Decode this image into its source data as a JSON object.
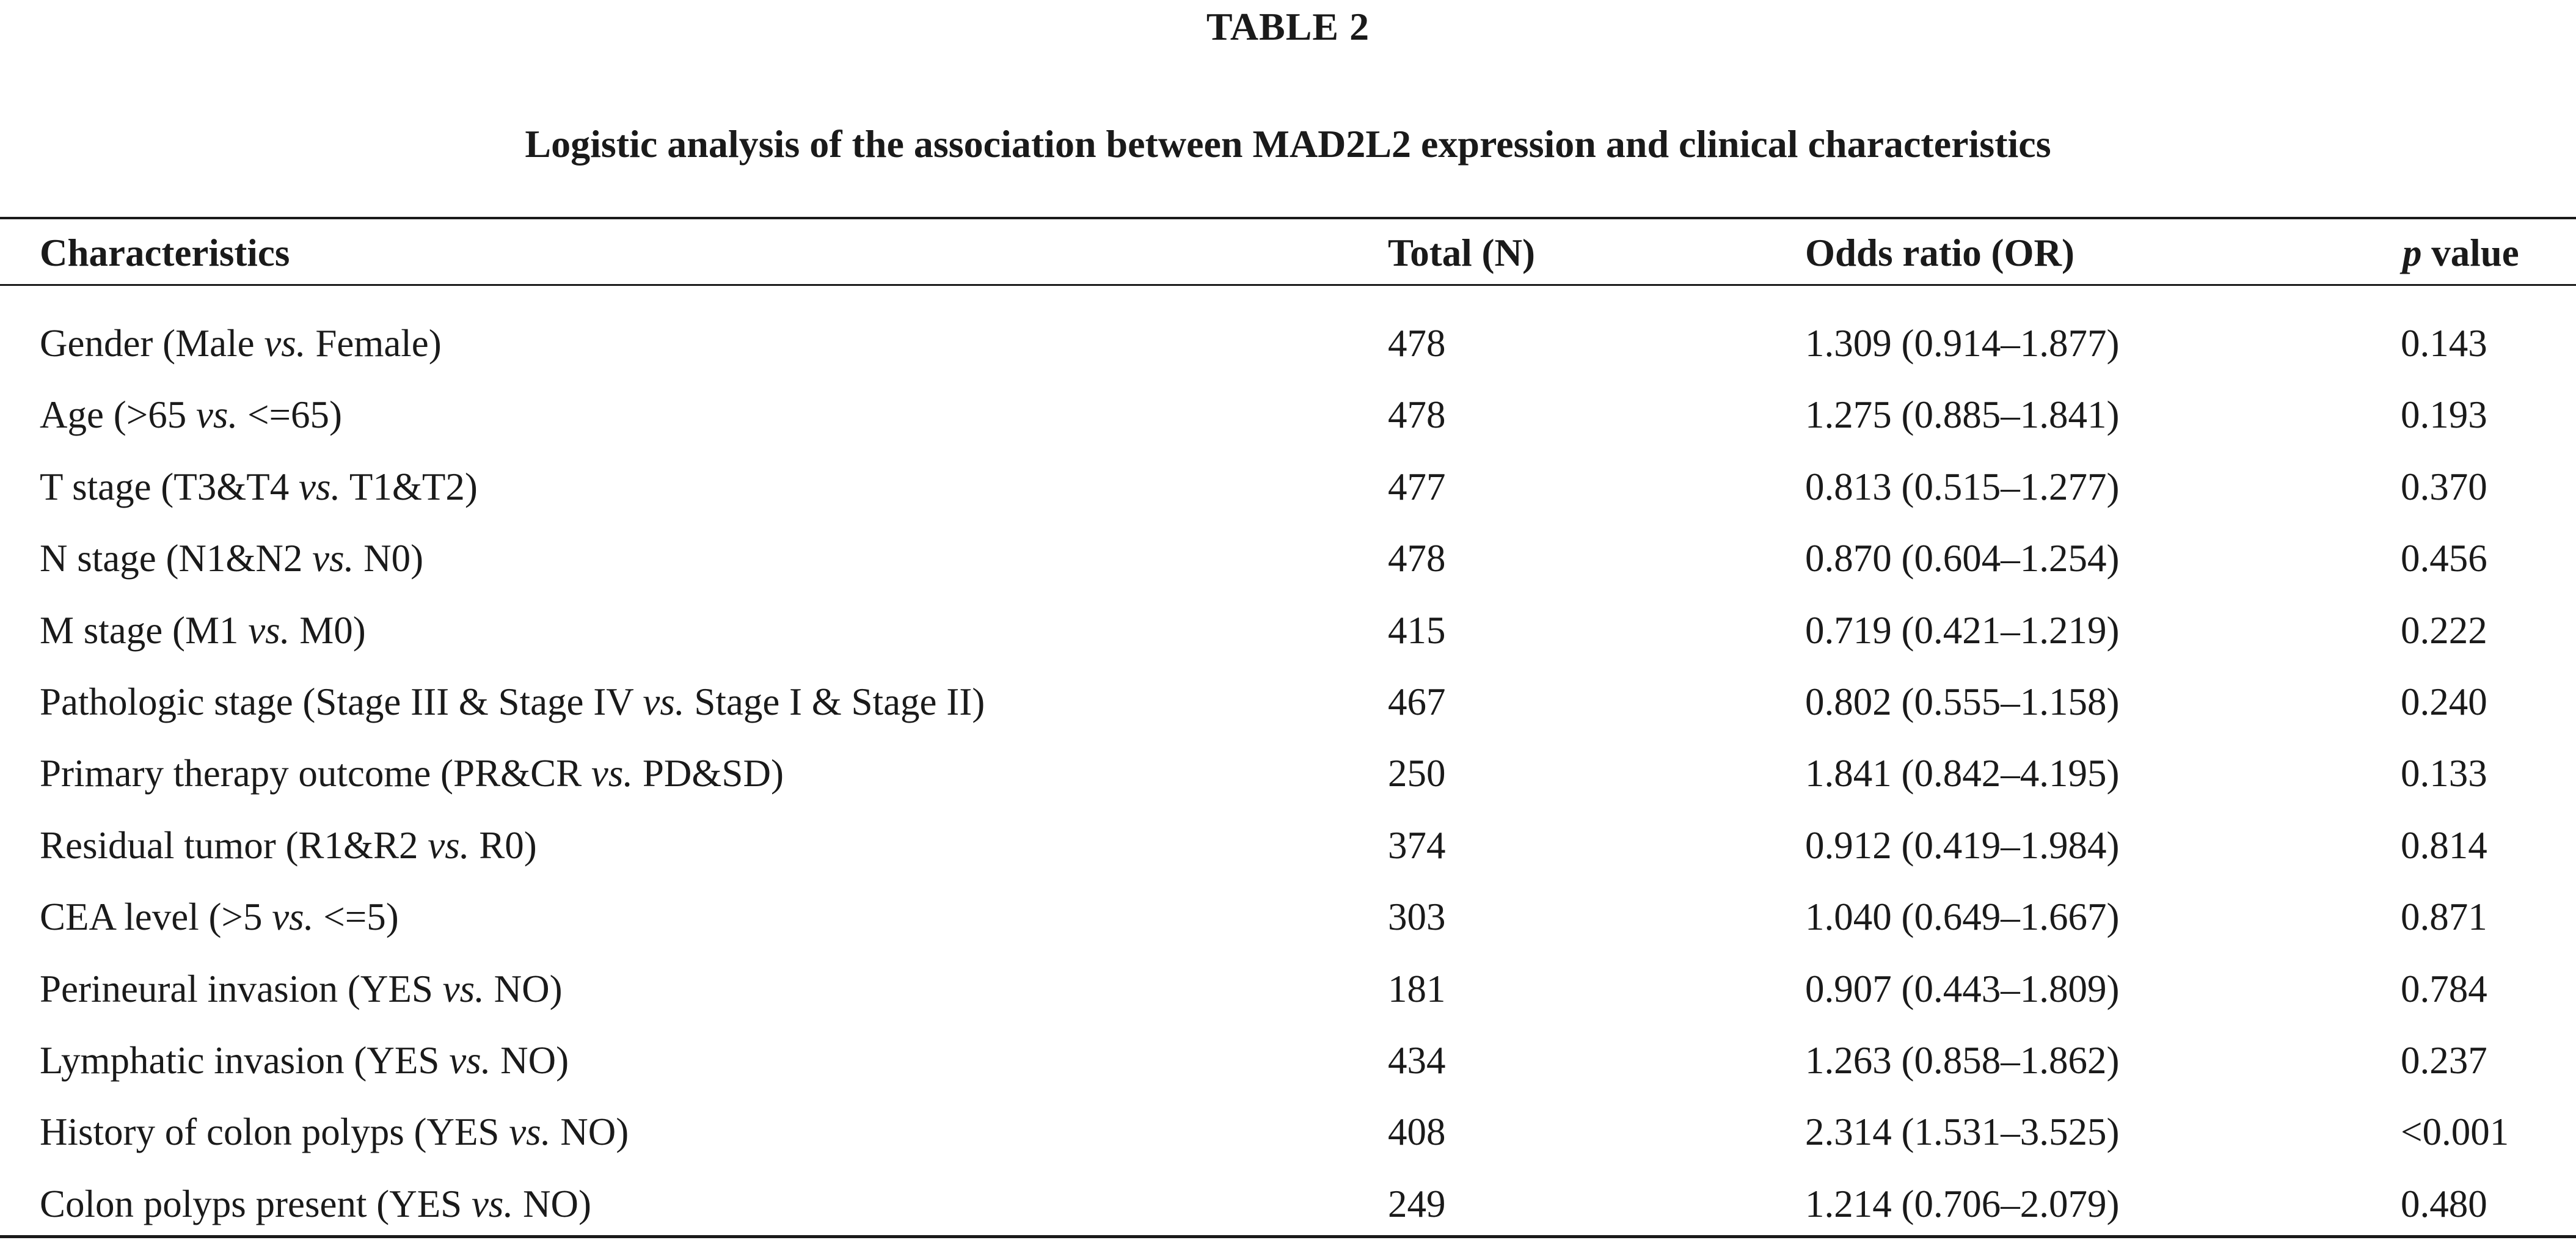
{
  "table_label": "TABLE 2",
  "caption": "Logistic analysis of the association between MAD2L2 expression and clinical characteristics",
  "columns": {
    "characteristics": "Characteristics",
    "total": "Total (N)",
    "odds_ratio": "Odds ratio (OR)",
    "p_value_italic": "p",
    "p_value_rest": " value"
  },
  "rows": [
    {
      "pre": "Gender (Male ",
      "vs": "vs.",
      "post": " Female)",
      "total": "478",
      "or": "1.309 (0.914–1.877)",
      "p": "0.143"
    },
    {
      "pre": "Age (>65 ",
      "vs": "vs.",
      "post": " <=65)",
      "total": "478",
      "or": "1.275 (0.885–1.841)",
      "p": "0.193"
    },
    {
      "pre": "T stage (T3&T4 ",
      "vs": "vs.",
      "post": " T1&T2)",
      "total": "477",
      "or": "0.813 (0.515–1.277)",
      "p": "0.370"
    },
    {
      "pre": "N stage (N1&N2 ",
      "vs": "vs.",
      "post": " N0)",
      "total": "478",
      "or": "0.870 (0.604–1.254)",
      "p": "0.456"
    },
    {
      "pre": "M stage (M1 ",
      "vs": "vs.",
      "post": " M0)",
      "total": "415",
      "or": "0.719 (0.421–1.219)",
      "p": "0.222"
    },
    {
      "pre": "Pathologic stage (Stage III & Stage IV ",
      "vs": "vs.",
      "post": " Stage I & Stage II)",
      "total": "467",
      "or": "0.802 (0.555–1.158)",
      "p": "0.240"
    },
    {
      "pre": "Primary therapy outcome (PR&CR ",
      "vs": "vs.",
      "post": " PD&SD)",
      "total": "250",
      "or": "1.841 (0.842–4.195)",
      "p": "0.133"
    },
    {
      "pre": "Residual tumor (R1&R2 ",
      "vs": "vs.",
      "post": " R0)",
      "total": "374",
      "or": "0.912 (0.419–1.984)",
      "p": "0.814"
    },
    {
      "pre": "CEA level (>5 ",
      "vs": "vs.",
      "post": " <=5)",
      "total": "303",
      "or": "1.040 (0.649–1.667)",
      "p": "0.871"
    },
    {
      "pre": "Perineural invasion (YES ",
      "vs": "vs.",
      "post": " NO)",
      "total": "181",
      "or": "0.907 (0.443–1.809)",
      "p": "0.784"
    },
    {
      "pre": "Lymphatic invasion (YES ",
      "vs": "vs.",
      "post": " NO)",
      "total": "434",
      "or": "1.263 (0.858–1.862)",
      "p": "0.237"
    },
    {
      "pre": "History of colon polyps (YES ",
      "vs": "vs.",
      "post": " NO)",
      "total": "408",
      "or": "2.314 (1.531–3.525)",
      "p": "<0.001"
    },
    {
      "pre": "Colon polyps present (YES ",
      "vs": "vs.",
      "post": " NO)",
      "total": "249",
      "or": "1.214 (0.706–2.079)",
      "p": "0.480"
    }
  ]
}
